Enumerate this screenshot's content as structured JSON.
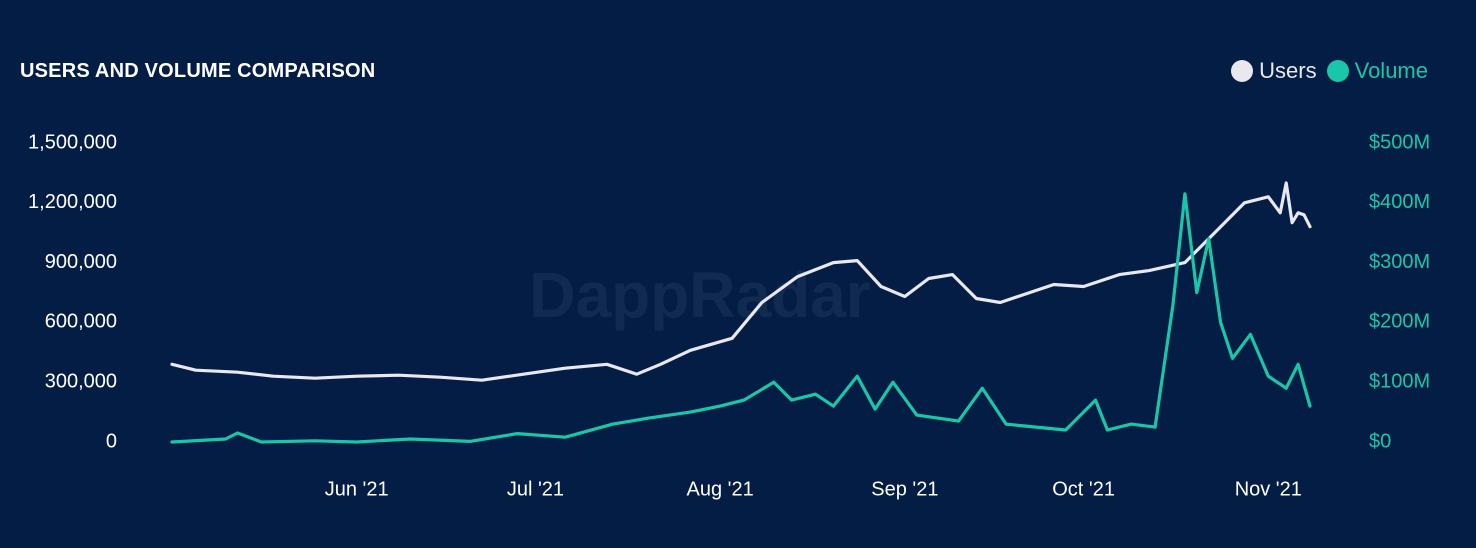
{
  "title": "USERS AND VOLUME COMPARISON",
  "watermark": "DappRadar",
  "colors": {
    "background": "#031d45",
    "users": "#e8e8ee",
    "volume": "#19c7a8",
    "text": "#ffffff"
  },
  "legend": {
    "users": "Users",
    "volume": "Volume"
  },
  "chart_data": {
    "type": "line",
    "x_start": "2021-05-01",
    "x_end": "2021-11-08",
    "x_ticks": [
      "Jun '21",
      "Jul '21",
      "Aug '21",
      "Sep '21",
      "Oct '21",
      "Nov '21"
    ],
    "x_tick_dates": [
      "2021-06-01",
      "2021-07-01",
      "2021-08-01",
      "2021-09-01",
      "2021-10-01",
      "2021-11-01"
    ],
    "y_left": {
      "ylim": [
        0,
        1500000
      ],
      "ticks": [
        "0",
        "300,000",
        "600,000",
        "900,000",
        "1,200,000",
        "1,500,000"
      ]
    },
    "y_right": {
      "ylim": [
        0,
        500
      ],
      "unit": "$M",
      "ticks": [
        "$0",
        "$100M",
        "$200M",
        "$300M",
        "$400M",
        "$500M"
      ]
    },
    "series": [
      {
        "name": "Users",
        "axis": "left",
        "points": [
          [
            "2021-05-01",
            390000
          ],
          [
            "2021-05-05",
            360000
          ],
          [
            "2021-05-12",
            350000
          ],
          [
            "2021-05-18",
            330000
          ],
          [
            "2021-05-25",
            320000
          ],
          [
            "2021-06-01",
            330000
          ],
          [
            "2021-06-08",
            335000
          ],
          [
            "2021-06-15",
            325000
          ],
          [
            "2021-06-22",
            310000
          ],
          [
            "2021-06-29",
            340000
          ],
          [
            "2021-07-06",
            370000
          ],
          [
            "2021-07-13",
            390000
          ],
          [
            "2021-07-18",
            340000
          ],
          [
            "2021-07-22",
            390000
          ],
          [
            "2021-07-27",
            460000
          ],
          [
            "2021-08-03",
            520000
          ],
          [
            "2021-08-08",
            700000
          ],
          [
            "2021-08-14",
            830000
          ],
          [
            "2021-08-20",
            900000
          ],
          [
            "2021-08-24",
            910000
          ],
          [
            "2021-08-28",
            780000
          ],
          [
            "2021-09-01",
            730000
          ],
          [
            "2021-09-05",
            820000
          ],
          [
            "2021-09-09",
            840000
          ],
          [
            "2021-09-13",
            720000
          ],
          [
            "2021-09-17",
            700000
          ],
          [
            "2021-09-22",
            750000
          ],
          [
            "2021-09-26",
            790000
          ],
          [
            "2021-10-01",
            780000
          ],
          [
            "2021-10-07",
            840000
          ],
          [
            "2021-10-12",
            860000
          ],
          [
            "2021-10-18",
            900000
          ],
          [
            "2021-10-23",
            1050000
          ],
          [
            "2021-10-28",
            1200000
          ],
          [
            "2021-11-01",
            1230000
          ],
          [
            "2021-11-03",
            1150000
          ],
          [
            "2021-11-04",
            1300000
          ],
          [
            "2021-11-05",
            1100000
          ],
          [
            "2021-11-06",
            1150000
          ],
          [
            "2021-11-07",
            1140000
          ],
          [
            "2021-11-08",
            1080000
          ]
        ]
      },
      {
        "name": "Volume",
        "axis": "right",
        "points": [
          [
            "2021-05-01",
            0
          ],
          [
            "2021-05-10",
            5
          ],
          [
            "2021-05-12",
            15
          ],
          [
            "2021-05-16",
            0
          ],
          [
            "2021-05-25",
            2
          ],
          [
            "2021-06-01",
            0
          ],
          [
            "2021-06-10",
            5
          ],
          [
            "2021-06-20",
            1
          ],
          [
            "2021-06-28",
            14
          ],
          [
            "2021-07-06",
            8
          ],
          [
            "2021-07-14",
            30
          ],
          [
            "2021-07-20",
            40
          ],
          [
            "2021-07-27",
            50
          ],
          [
            "2021-08-01",
            60
          ],
          [
            "2021-08-05",
            70
          ],
          [
            "2021-08-10",
            100
          ],
          [
            "2021-08-13",
            70
          ],
          [
            "2021-08-17",
            80
          ],
          [
            "2021-08-20",
            60
          ],
          [
            "2021-08-24",
            110
          ],
          [
            "2021-08-27",
            55
          ],
          [
            "2021-08-30",
            100
          ],
          [
            "2021-09-03",
            45
          ],
          [
            "2021-09-10",
            35
          ],
          [
            "2021-09-14",
            90
          ],
          [
            "2021-09-18",
            30
          ],
          [
            "2021-09-23",
            25
          ],
          [
            "2021-09-28",
            20
          ],
          [
            "2021-10-03",
            70
          ],
          [
            "2021-10-05",
            20
          ],
          [
            "2021-10-09",
            30
          ],
          [
            "2021-10-13",
            25
          ],
          [
            "2021-10-16",
            230
          ],
          [
            "2021-10-18",
            415
          ],
          [
            "2021-10-20",
            250
          ],
          [
            "2021-10-22",
            340
          ],
          [
            "2021-10-24",
            200
          ],
          [
            "2021-10-26",
            140
          ],
          [
            "2021-10-29",
            180
          ],
          [
            "2021-11-01",
            110
          ],
          [
            "2021-11-04",
            90
          ],
          [
            "2021-11-06",
            130
          ],
          [
            "2021-11-08",
            60
          ]
        ]
      }
    ],
    "grid": false,
    "legend_position": "top-right"
  }
}
